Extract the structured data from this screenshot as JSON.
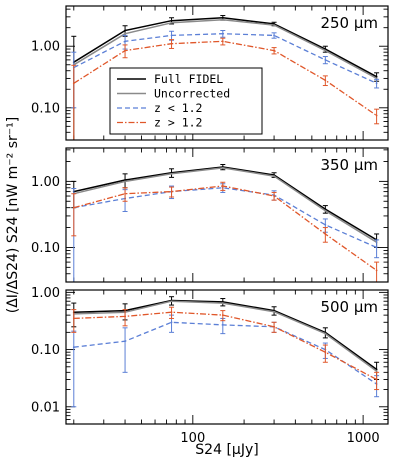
{
  "chart_data": {
    "type": "line",
    "xlabel": "S24 [μJy]",
    "ylabel": "(ΔI/ΔS24) S24 [nW m⁻² sr⁻¹]",
    "xscale": "log",
    "yscale": "log",
    "xlim": [
      18,
      1400
    ],
    "xticks": [
      {
        "value": 100,
        "label": "100"
      },
      {
        "value": 1000,
        "label": "1000"
      }
    ],
    "x": [
      20,
      40,
      75,
      150,
      300,
      600,
      1200
    ],
    "series_styles": [
      {
        "key": "full",
        "color": "#000000",
        "dash": "",
        "width": 1.5
      },
      {
        "key": "uncorrected",
        "color": "#8a8a8a",
        "dash": "",
        "width": 1.5
      },
      {
        "key": "zlow",
        "color": "#5b7fd6",
        "dash": "5,3",
        "width": 1.3
      },
      {
        "key": "zhigh",
        "color": "#e0572a",
        "dash": "6,2,1.5,2",
        "width": 1.3
      }
    ],
    "legend": {
      "placement": "left-center of top panel",
      "entries": [
        {
          "key": "full",
          "label": "Full FIDEL"
        },
        {
          "key": "uncorrected",
          "label": "Uncorrected"
        },
        {
          "key": "zlow",
          "label": "z < 1.2"
        },
        {
          "key": "zhigh",
          "label": "z > 1.2"
        }
      ]
    },
    "panels": [
      {
        "label": "250 μm",
        "ylim": [
          0.03,
          4.5
        ],
        "yticks": [
          {
            "value": 0.1,
            "label": "0.10"
          },
          {
            "value": 1.0,
            "label": "1.00"
          }
        ],
        "series": [
          {
            "key": "full",
            "values": [
              0.55,
              1.8,
              2.6,
              2.9,
              2.3,
              0.9,
              0.32
            ],
            "err": [
              0.9,
              0.35,
              0.3,
              0.25,
              0.15,
              0.1,
              0.05
            ]
          },
          {
            "key": "uncorrected",
            "values": [
              0.5,
              1.6,
              2.4,
              2.7,
              2.2,
              0.85,
              0.3
            ],
            "err": [
              0,
              0,
              0,
              0,
              0,
              0,
              0
            ]
          },
          {
            "key": "zlow",
            "values": [
              0.45,
              1.2,
              1.5,
              1.6,
              1.5,
              0.6,
              0.25
            ],
            "err": [
              0.35,
              0.3,
              0.25,
              0.2,
              0.15,
              0.08,
              0.04
            ]
          },
          {
            "key": "zhigh",
            "values": [
              0.25,
              0.85,
              1.1,
              1.2,
              0.85,
              0.28,
              0.075
            ],
            "err": [
              0.24,
              0.2,
              0.18,
              0.15,
              0.1,
              0.05,
              0.02
            ]
          }
        ]
      },
      {
        "label": "350 μm",
        "ylim": [
          0.03,
          3.2
        ],
        "yticks": [
          {
            "value": 0.1,
            "label": "0.10"
          },
          {
            "value": 1.0,
            "label": "1.00"
          }
        ],
        "series": [
          {
            "key": "full",
            "values": [
              0.7,
              1.05,
              1.35,
              1.65,
              1.25,
              0.38,
              0.13
            ],
            "err": [
              0.3,
              0.25,
              0.2,
              0.15,
              0.1,
              0.05,
              0.03
            ]
          },
          {
            "key": "uncorrected",
            "values": [
              0.65,
              1.0,
              1.3,
              1.6,
              1.2,
              0.36,
              0.12
            ],
            "err": [
              0,
              0,
              0,
              0,
              0,
              0,
              0
            ]
          },
          {
            "key": "zlow",
            "values": [
              0.4,
              0.55,
              0.7,
              0.8,
              0.62,
              0.22,
              0.1
            ],
            "err": [
              0.38,
              0.2,
              0.15,
              0.12,
              0.1,
              0.05,
              0.03
            ]
          },
          {
            "key": "zhigh",
            "values": [
              0.4,
              0.65,
              0.7,
              0.85,
              0.6,
              0.16,
              0.045
            ],
            "err": [
              0.25,
              0.15,
              0.12,
              0.12,
              0.08,
              0.04,
              0.015
            ]
          }
        ]
      },
      {
        "label": "500 μm",
        "ylim": [
          0.005,
          1.1
        ],
        "yticks": [
          {
            "value": 0.01,
            "label": "0.01"
          },
          {
            "value": 0.1,
            "label": "0.10"
          },
          {
            "value": 1.0,
            "label": "1.00"
          }
        ],
        "series": [
          {
            "key": "full",
            "values": [
              0.45,
              0.48,
              0.72,
              0.68,
              0.48,
              0.2,
              0.045
            ],
            "err": [
              0.2,
              0.15,
              0.12,
              0.1,
              0.08,
              0.04,
              0.015
            ]
          },
          {
            "key": "uncorrected",
            "values": [
              0.42,
              0.45,
              0.7,
              0.65,
              0.46,
              0.19,
              0.042
            ],
            "err": [
              0,
              0,
              0,
              0,
              0,
              0,
              0
            ]
          },
          {
            "key": "zlow",
            "values": [
              0.11,
              0.14,
              0.3,
              0.27,
              0.25,
              0.1,
              0.025
            ],
            "err": [
              0.1,
              0.1,
              0.1,
              0.08,
              0.05,
              0.03,
              0.01
            ]
          },
          {
            "key": "zhigh",
            "values": [
              0.35,
              0.38,
              0.45,
              0.4,
              0.25,
              0.09,
              0.03
            ],
            "err": [
              0.15,
              0.12,
              0.1,
              0.08,
              0.05,
              0.03,
              0.01
            ]
          }
        ]
      }
    ]
  }
}
